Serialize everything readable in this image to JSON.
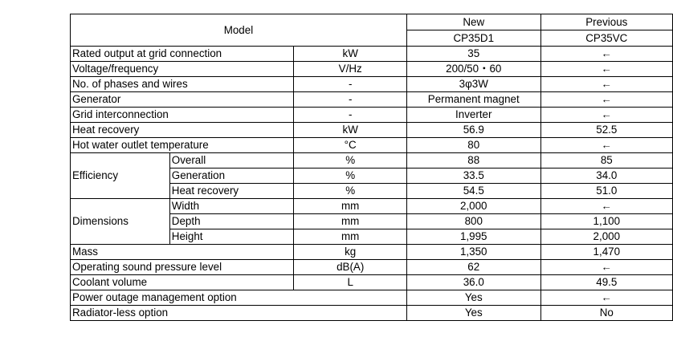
{
  "header": {
    "model": "Model",
    "new_label": "New",
    "previous_label": "Previous",
    "new_model": "CP35D1",
    "previous_model": "CP35VC"
  },
  "rows": {
    "rated_output": {
      "label": "Rated output at grid connection",
      "unit": "kW",
      "new": "35",
      "prev": "←"
    },
    "voltage": {
      "label": "Voltage/frequency",
      "unit": "V/Hz",
      "new": "200/50・60",
      "prev": "←"
    },
    "phases": {
      "label": "No. of phases and wires",
      "unit": "-",
      "new": "3φ3W",
      "prev": "←"
    },
    "generator": {
      "label": "Generator",
      "unit": "-",
      "new": "Permanent magnet",
      "prev": "←"
    },
    "grid": {
      "label": "Grid interconnection",
      "unit": "-",
      "new": "Inverter",
      "prev": "←"
    },
    "heat_recovery": {
      "label": "Heat recovery",
      "unit": "kW",
      "new": "56.9",
      "prev": "52.5"
    },
    "hot_water": {
      "label": "Hot water outlet temperature",
      "unit": "°C",
      "new": "80",
      "prev": "←"
    },
    "efficiency": {
      "label": "Efficiency",
      "overall": {
        "label": "Overall",
        "unit": "%",
        "new": "88",
        "prev": "85"
      },
      "generation": {
        "label": "Generation",
        "unit": "%",
        "new": "33.5",
        "prev": "34.0"
      },
      "heat": {
        "label": "Heat recovery",
        "unit": "%",
        "new": "54.5",
        "prev": "51.0"
      }
    },
    "dimensions": {
      "label": "Dimensions",
      "width": {
        "label": "Width",
        "unit": "mm",
        "new": "2,000",
        "prev": "←"
      },
      "depth": {
        "label": "Depth",
        "unit": "mm",
        "new": "800",
        "prev": "1,100"
      },
      "height": {
        "label": "Height",
        "unit": "mm",
        "new": "1,995",
        "prev": "2,000"
      }
    },
    "mass": {
      "label": "Mass",
      "unit": "kg",
      "new": "1,350",
      "prev": "1,470"
    },
    "sound": {
      "label": "Operating sound pressure level",
      "unit": "dB(A)",
      "new": "62",
      "prev": "←"
    },
    "coolant": {
      "label": "Coolant volume",
      "unit": "L",
      "new": "36.0",
      "prev": "49.5"
    },
    "power_outage": {
      "label": "Power outage management option",
      "new": "Yes",
      "prev": "←"
    },
    "radiator": {
      "label": "Radiator-less option",
      "new": "Yes",
      "prev": "No"
    }
  }
}
